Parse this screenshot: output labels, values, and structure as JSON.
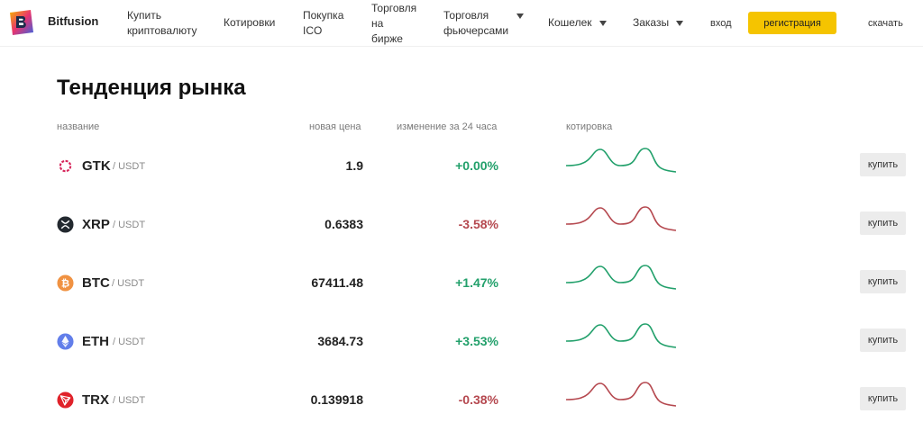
{
  "header": {
    "brand": "Bitfusion",
    "nav": [
      {
        "label": "Купить\nкриптовалюту",
        "dropdown": false
      },
      {
        "label": "Котировки",
        "dropdown": false
      },
      {
        "label": "Покупка\nICO",
        "dropdown": false
      },
      {
        "label": "Торговля\nна\nбирже",
        "dropdown": false
      },
      {
        "label": "Торговля\nфьючерсами",
        "dropdown": true
      },
      {
        "label": "Кошелек",
        "dropdown": true
      },
      {
        "label": "Заказы",
        "dropdown": true
      }
    ],
    "login_label": "вход",
    "register_label": "регистрация",
    "download_label": "скачать"
  },
  "market": {
    "title": "Тенденция рынка",
    "columns": {
      "name": "название",
      "price": "новая цена",
      "change": "изменение за 24 часа",
      "quote": "котировка"
    },
    "buy_label": "купить",
    "rows": [
      {
        "symbol": "GTK",
        "quote": "/ USDT",
        "price": "1.9",
        "change": "+0.00%",
        "trend": "up",
        "icon": "gtk-coin-icon",
        "icon_color": "#d6245a"
      },
      {
        "symbol": "XRP",
        "quote": "/ USDT",
        "price": "0.6383",
        "change": "-3.58%",
        "trend": "down",
        "icon": "xrp-coin-icon",
        "icon_color": "#23292f"
      },
      {
        "symbol": "BTC",
        "quote": "/ USDT",
        "price": "67411.48",
        "change": "+1.47%",
        "trend": "up",
        "icon": "btc-coin-icon",
        "icon_color": "#f09242"
      },
      {
        "symbol": "ETH",
        "quote": "/ USDT",
        "price": "3684.73",
        "change": "+3.53%",
        "trend": "up",
        "icon": "eth-coin-icon",
        "icon_color": "#627eea"
      },
      {
        "symbol": "TRX",
        "quote": "/ USDT",
        "price": "0.139918",
        "change": "-0.38%",
        "trend": "down",
        "icon": "trx-coin-icon",
        "icon_color": "#e0222a"
      }
    ]
  },
  "colors": {
    "accent": "#f5c400",
    "up": "#22a06b",
    "down": "#b5484f"
  }
}
